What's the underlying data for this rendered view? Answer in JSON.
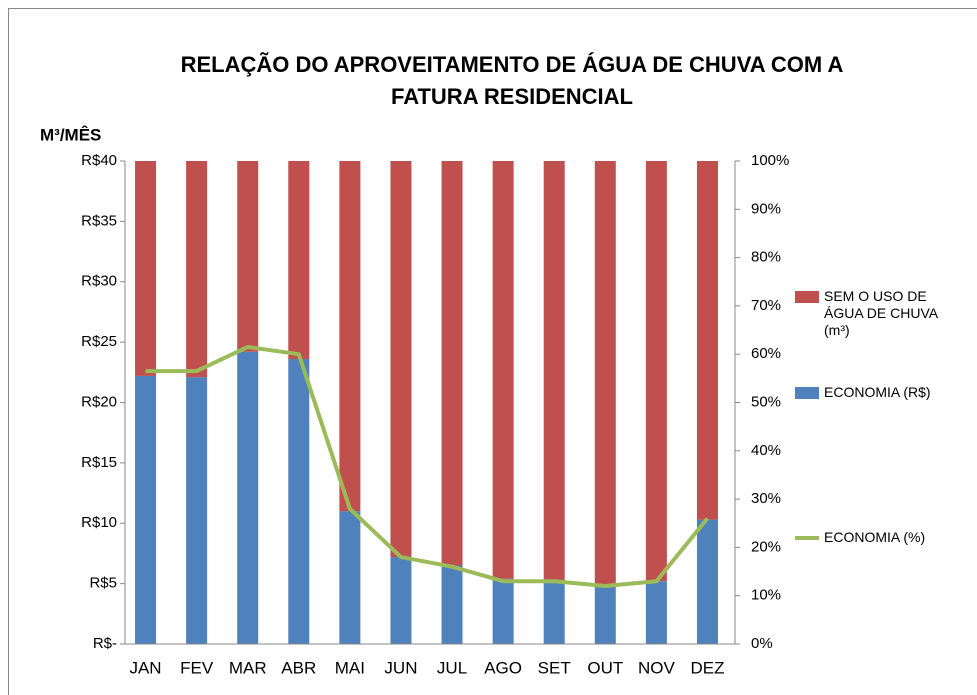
{
  "chart_data": {
    "type": "bar",
    "stacked": true,
    "title": [
      "RELAÇÃO DO APROVEITAMENTO DE ÁGUA DE CHUVA COM A",
      "FATURA RESIDENCIAL"
    ],
    "y_label": "M³/MÊS",
    "categories": [
      "JAN",
      "FEV",
      "MAR",
      "ABR",
      "MAI",
      "JUN",
      "JUL",
      "AGO",
      "SET",
      "OUT",
      "NOV",
      "DEZ"
    ],
    "series": [
      {
        "name": "SEM O USO DE ÁGUA DE CHUVA (m³)",
        "color": "#c0504d",
        "type": "bar",
        "axis": "y",
        "values": [
          17.8,
          17.9,
          15.8,
          16.4,
          29,
          32.8,
          33.5,
          34.6,
          34.7,
          35.2,
          34.8,
          29.7
        ]
      },
      {
        "name": "ECONOMIA (R$)",
        "color": "#4f81bd",
        "type": "bar",
        "axis": "y",
        "values": [
          22.2,
          22.1,
          24.2,
          23.6,
          11,
          7.2,
          6.5,
          5.4,
          5.3,
          4.8,
          5.2,
          10.3
        ]
      },
      {
        "name": "ECONOMIA (%)",
        "color": "#9bbb59",
        "type": "line",
        "axis": "y2",
        "values": [
          56.5,
          56.5,
          61.5,
          60,
          28,
          18,
          16,
          13,
          13,
          12,
          13,
          26
        ]
      }
    ],
    "ylim": [
      0,
      40
    ],
    "yticks": [
      {
        "value": 0,
        "label": "R$-"
      },
      {
        "value": 5,
        "label": "R$5"
      },
      {
        "value": 10,
        "label": "R$10"
      },
      {
        "value": 15,
        "label": "R$15"
      },
      {
        "value": 20,
        "label": "R$20"
      },
      {
        "value": 25,
        "label": "R$25"
      },
      {
        "value": 30,
        "label": "R$30"
      },
      {
        "value": 35,
        "label": "R$35"
      },
      {
        "value": 40,
        "label": "R$40"
      }
    ],
    "y2lim": [
      0,
      100
    ],
    "y2ticks": [
      {
        "value": 0,
        "label": "0%"
      },
      {
        "value": 10,
        "label": "10%"
      },
      {
        "value": 20,
        "label": "20%"
      },
      {
        "value": 30,
        "label": "30%"
      },
      {
        "value": 40,
        "label": "40%"
      },
      {
        "value": 50,
        "label": "50%"
      },
      {
        "value": 60,
        "label": "60%"
      },
      {
        "value": 70,
        "label": "70%"
      },
      {
        "value": 80,
        "label": "80%"
      },
      {
        "value": 90,
        "label": "90%"
      },
      {
        "value": 100,
        "label": "100%"
      }
    ],
    "grid": false,
    "legend": "right"
  }
}
